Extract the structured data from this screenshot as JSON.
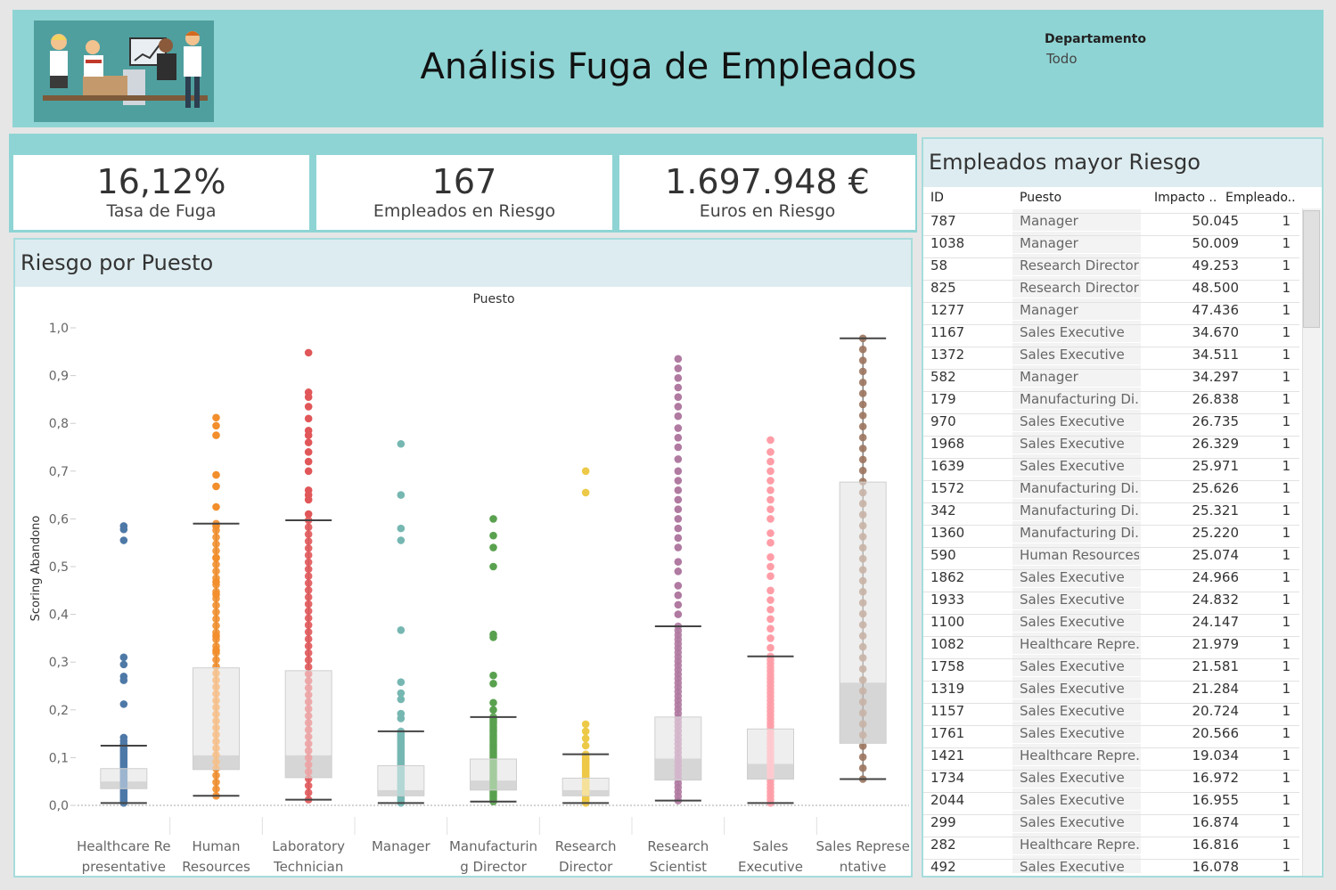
{
  "header": {
    "title": "Análisis Fuga de Empleados",
    "filter_label": "Departamento",
    "filter_value": "Todo",
    "logo_icon": "office-team-illustration-icon"
  },
  "kpis": [
    {
      "value": "16,12%",
      "label": "Tasa de Fuga"
    },
    {
      "value": "167",
      "label": "Empleados en Riesgo"
    },
    {
      "value": "1.697.948 €",
      "label": "Euros en Riesgo"
    }
  ],
  "chart_panel": {
    "title": "Riesgo por Puesto"
  },
  "chart_data": {
    "type": "scatter",
    "subtype": "box-and-jitter",
    "column_header": "Puesto",
    "ylabel": "Scoring Abandono",
    "ylim": [
      0,
      1.0
    ],
    "yticks": [
      "0,0",
      "0,1",
      "0,2",
      "0,3",
      "0,4",
      "0,5",
      "0,6",
      "0,7",
      "0,8",
      "0,9",
      "1,0"
    ],
    "grid": false,
    "categories": [
      {
        "label_lines": [
          "Healthcare Re",
          "presentative"
        ],
        "color": "#4e79a7",
        "box": {
          "whisker_low": 0.005,
          "q1": 0.035,
          "median": 0.05,
          "q3": 0.077,
          "whisker_high": 0.125
        },
        "outliers": [
          0.585,
          0.578,
          0.555,
          0.31,
          0.295,
          0.27,
          0.262,
          0.212,
          0.142,
          0.135,
          0.128
        ]
      },
      {
        "label_lines": [
          "Human",
          "Resources"
        ],
        "color": "#f28e2b",
        "box": {
          "whisker_low": 0.02,
          "q1": 0.075,
          "median": 0.105,
          "q3": 0.288,
          "whisker_high": 0.59
        },
        "outliers": [
          0.812,
          0.795,
          0.775,
          0.692,
          0.668,
          0.625,
          0.585,
          0.518,
          0.468,
          0.442,
          0.355,
          0.325
        ]
      },
      {
        "label_lines": [
          "Laboratory",
          "Technician"
        ],
        "color": "#e15759",
        "box": {
          "whisker_low": 0.012,
          "q1": 0.058,
          "median": 0.105,
          "q3": 0.282,
          "whisker_high": 0.597
        },
        "outliers": [
          0.948,
          0.865,
          0.855,
          0.835,
          0.81,
          0.785,
          0.775,
          0.76,
          0.74,
          0.72,
          0.7,
          0.66,
          0.65,
          0.64,
          0.61
        ]
      },
      {
        "label_lines": [
          "Manager"
        ],
        "color": "#76b7b2",
        "box": {
          "whisker_low": 0.005,
          "q1": 0.02,
          "median": 0.032,
          "q3": 0.083,
          "whisker_high": 0.155
        },
        "outliers": [
          0.757,
          0.65,
          0.58,
          0.555,
          0.367,
          0.258,
          0.235,
          0.222,
          0.192,
          0.182
        ]
      },
      {
        "label_lines": [
          "Manufacturin",
          "g Director"
        ],
        "color": "#59a14f",
        "box": {
          "whisker_low": 0.008,
          "q1": 0.032,
          "median": 0.052,
          "q3": 0.097,
          "whisker_high": 0.185
        },
        "outliers": [
          0.6,
          0.565,
          0.54,
          0.5,
          0.358,
          0.352,
          0.272,
          0.255,
          0.215,
          0.2
        ]
      },
      {
        "label_lines": [
          "Research",
          "Director"
        ],
        "color": "#edc948",
        "box": {
          "whisker_low": 0.005,
          "q1": 0.02,
          "median": 0.032,
          "q3": 0.057,
          "whisker_high": 0.107
        },
        "outliers": [
          0.7,
          0.655,
          0.17,
          0.155,
          0.14,
          0.125
        ]
      },
      {
        "label_lines": [
          "Research",
          "Scientist"
        ],
        "color": "#b07aa1",
        "box": {
          "whisker_low": 0.01,
          "q1": 0.053,
          "median": 0.098,
          "q3": 0.185,
          "whisker_high": 0.375
        },
        "outliers": [
          0.935,
          0.915,
          0.895,
          0.875,
          0.855,
          0.835,
          0.815,
          0.79,
          0.77,
          0.75,
          0.725,
          0.7,
          0.68,
          0.66,
          0.64,
          0.62,
          0.6,
          0.58,
          0.56,
          0.54,
          0.51,
          0.49,
          0.46,
          0.44,
          0.42,
          0.4
        ]
      },
      {
        "label_lines": [
          "Sales",
          "Executive"
        ],
        "color": "#ff9da7",
        "box": {
          "whisker_low": 0.005,
          "q1": 0.055,
          "median": 0.087,
          "q3": 0.16,
          "whisker_high": 0.312
        },
        "outliers": [
          0.765,
          0.74,
          0.72,
          0.7,
          0.68,
          0.66,
          0.64,
          0.62,
          0.6,
          0.57,
          0.55,
          0.52,
          0.5,
          0.48,
          0.45,
          0.43,
          0.41,
          0.39,
          0.37,
          0.35,
          0.33
        ]
      },
      {
        "label_lines": [
          "Sales Represe",
          "ntative"
        ],
        "color": "#9c755f",
        "box": {
          "whisker_low": 0.055,
          "q1": 0.13,
          "median": 0.257,
          "q3": 0.677,
          "whisker_high": 0.978
        },
        "outliers": []
      }
    ]
  },
  "table": {
    "title": "Empleados mayor Riesgo",
    "columns": [
      "ID",
      "Puesto",
      "Impacto ..",
      "Empleado.."
    ],
    "rows": [
      [
        "787",
        "Manager",
        "50.045",
        "1"
      ],
      [
        "1038",
        "Manager",
        "50.009",
        "1"
      ],
      [
        "58",
        "Research Director",
        "49.253",
        "1"
      ],
      [
        "825",
        "Research Director",
        "48.500",
        "1"
      ],
      [
        "1277",
        "Manager",
        "47.436",
        "1"
      ],
      [
        "1167",
        "Sales Executive",
        "34.670",
        "1"
      ],
      [
        "1372",
        "Sales Executive",
        "34.511",
        "1"
      ],
      [
        "582",
        "Manager",
        "34.297",
        "1"
      ],
      [
        "179",
        "Manufacturing Di..",
        "26.838",
        "1"
      ],
      [
        "970",
        "Sales Executive",
        "26.735",
        "1"
      ],
      [
        "1968",
        "Sales Executive",
        "26.329",
        "1"
      ],
      [
        "1639",
        "Sales Executive",
        "25.971",
        "1"
      ],
      [
        "1572",
        "Manufacturing Di..",
        "25.626",
        "1"
      ],
      [
        "342",
        "Manufacturing Di..",
        "25.321",
        "1"
      ],
      [
        "1360",
        "Manufacturing Di..",
        "25.220",
        "1"
      ],
      [
        "590",
        "Human Resources",
        "25.074",
        "1"
      ],
      [
        "1862",
        "Sales Executive",
        "24.966",
        "1"
      ],
      [
        "1933",
        "Sales Executive",
        "24.832",
        "1"
      ],
      [
        "1100",
        "Sales Executive",
        "24.147",
        "1"
      ],
      [
        "1082",
        "Healthcare Repre..",
        "21.979",
        "1"
      ],
      [
        "1758",
        "Sales Executive",
        "21.581",
        "1"
      ],
      [
        "1319",
        "Sales Executive",
        "21.284",
        "1"
      ],
      [
        "1157",
        "Sales Executive",
        "20.724",
        "1"
      ],
      [
        "1761",
        "Sales Executive",
        "20.566",
        "1"
      ],
      [
        "1421",
        "Healthcare Repre..",
        "19.034",
        "1"
      ],
      [
        "1734",
        "Sales Executive",
        "16.972",
        "1"
      ],
      [
        "2044",
        "Sales Executive",
        "16.955",
        "1"
      ],
      [
        "299",
        "Sales Executive",
        "16.874",
        "1"
      ],
      [
        "282",
        "Healthcare Repre..",
        "16.816",
        "1"
      ],
      [
        "492",
        "Sales Executive",
        "16.078",
        "1"
      ]
    ]
  }
}
